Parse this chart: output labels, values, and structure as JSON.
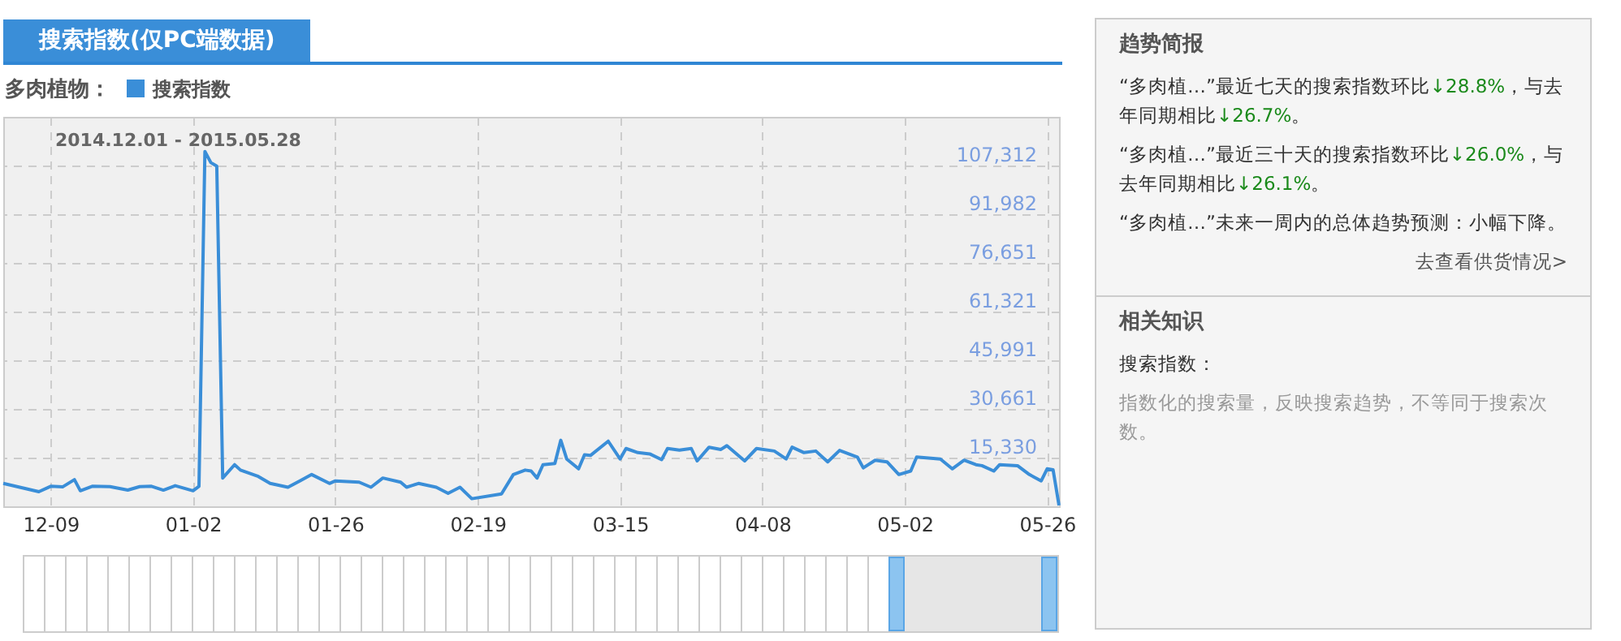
{
  "chart_data": [
    {
      "type": "line",
      "title": "搜索指数(仅PC端数据)",
      "subtitle": "2014.12.01 - 2015.05.28",
      "legend_title": "多肉植物：",
      "legend": "top left",
      "grid": true,
      "x": [
        "2014-12-01",
        "2014-12-07",
        "2014-12-09",
        "2014-12-11",
        "2014-12-13",
        "2014-12-14",
        "2014-12-16",
        "2014-12-19",
        "2014-12-22",
        "2014-12-24",
        "2014-12-26",
        "2014-12-28",
        "2014-12-30",
        "2015-01-02",
        "2015-01-03",
        "2015-01-04",
        "2015-01-05",
        "2015-01-06",
        "2015-01-07",
        "2015-01-09",
        "2015-01-10",
        "2015-01-13",
        "2015-01-15",
        "2015-01-18",
        "2015-01-20",
        "2015-01-22",
        "2015-01-25",
        "2015-01-26",
        "2015-01-30",
        "2015-02-01",
        "2015-02-03",
        "2015-02-06",
        "2015-02-07",
        "2015-02-09",
        "2015-02-12",
        "2015-02-14",
        "2015-02-16",
        "2015-02-18",
        "2015-02-23",
        "2015-02-25",
        "2015-02-27",
        "2015-02-28",
        "2015-03-01",
        "2015-03-02",
        "2015-03-04",
        "2015-03-05",
        "2015-03-06",
        "2015-03-08",
        "2015-03-09",
        "2015-03-10",
        "2015-03-13",
        "2015-03-15",
        "2015-03-16",
        "2015-03-18",
        "2015-03-20",
        "2015-03-22",
        "2015-03-23",
        "2015-03-25",
        "2015-03-27",
        "2015-03-28",
        "2015-03-30",
        "2015-04-01",
        "2015-04-02",
        "2015-04-05",
        "2015-04-07",
        "2015-04-10",
        "2015-04-12",
        "2015-04-13",
        "2015-04-15",
        "2015-04-17",
        "2015-04-19",
        "2015-04-21",
        "2015-04-24",
        "2015-04-25",
        "2015-04-27",
        "2015-04-29",
        "2015-05-01",
        "2015-05-03",
        "2015-05-04",
        "2015-05-08",
        "2015-05-10",
        "2015-05-12",
        "2015-05-14",
        "2015-05-15",
        "2015-05-17",
        "2015-05-18",
        "2015-05-21",
        "2015-05-23",
        "2015-05-25",
        "2015-05-26",
        "2015-05-27",
        "2015-05-28"
      ],
      "series": [
        {
          "name": "搜索指数",
          "color": "#3a8ed8",
          "values": [
            7200,
            4600,
            6300,
            6100,
            8400,
            4900,
            6300,
            6200,
            5100,
            6200,
            6300,
            5100,
            6500,
            4900,
            6300,
            111700,
            108200,
            107100,
            8900,
            13100,
            11400,
            9400,
            7200,
            6000,
            8000,
            10000,
            7200,
            8000,
            7600,
            6000,
            8900,
            7600,
            6000,
            7200,
            6000,
            4100,
            6000,
            2400,
            3900,
            10000,
            11400,
            11100,
            8900,
            13100,
            13500,
            20800,
            14900,
            11800,
            16200,
            16000,
            20500,
            14900,
            18200,
            16900,
            16500,
            14700,
            18200,
            17700,
            18200,
            14300,
            18600,
            17900,
            19100,
            14300,
            18200,
            17400,
            14900,
            18600,
            16900,
            17400,
            14000,
            17600,
            15500,
            12100,
            14500,
            14000,
            10000,
            11100,
            15500,
            14900,
            11800,
            14500,
            13100,
            12800,
            11100,
            13100,
            12800,
            10000,
            8000,
            11800,
            11500,
            300
          ]
        }
      ],
      "xlim": [
        "2014-12-01",
        "2015-05-28"
      ],
      "xticks": [
        {
          "value": "2014-12-09",
          "label": "12-09"
        },
        {
          "value": "2015-01-02",
          "label": "01-02"
        },
        {
          "value": "2015-01-26",
          "label": "01-26"
        },
        {
          "value": "2015-02-19",
          "label": "02-19"
        },
        {
          "value": "2015-03-15",
          "label": "03-15"
        },
        {
          "value": "2015-04-08",
          "label": "04-08"
        },
        {
          "value": "2015-05-02",
          "label": "05-02"
        },
        {
          "value": "2015-05-26",
          "label": "05-26"
        }
      ],
      "ylim": [
        0,
        122600
      ],
      "yticks": [
        {
          "value": 15330,
          "label": "15,330"
        },
        {
          "value": 30661,
          "label": "30,661"
        },
        {
          "value": 45991,
          "label": "45,991"
        },
        {
          "value": 61321,
          "label": "61,321"
        },
        {
          "value": 76651,
          "label": "76,651"
        },
        {
          "value": 91982,
          "label": "91,982"
        },
        {
          "value": 107312,
          "label": "107,312"
        }
      ]
    },
    {
      "type": "other",
      "title": "趋势简报",
      "annotations": [
        "“多肉植…”最近七天的搜索指数环比↓28.8%，与去年同期相比↓26.7%。",
        "“多肉植…”最近三十天的搜索指数环比↓26.0%，与去年同期相比↓26.1%。",
        "“多肉植…”未来一周内的总体趋势预测：小幅下降。",
        "去查看供货情况>"
      ]
    },
    {
      "type": "other",
      "title": "相关知识",
      "annotations": [
        "搜索指数：",
        "指数化的搜索量，反映搜索趋势，不等同于搜索次数。"
      ]
    }
  ]
}
